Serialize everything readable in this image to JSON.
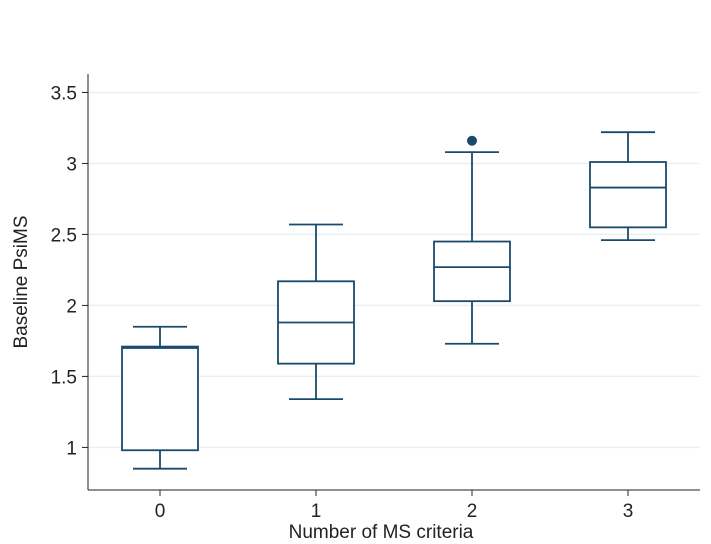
{
  "chart_data": {
    "type": "box",
    "title": "",
    "xlabel": "Number of MS criteria",
    "ylabel": "Baseline PsiMS",
    "categories": [
      "0",
      "1",
      "2",
      "3"
    ],
    "ylim": [
      0.7,
      3.63
    ],
    "yticks": [
      1,
      1.5,
      2,
      2.5,
      3,
      3.5
    ],
    "ytick_labels": [
      "1",
      "1.5",
      "2",
      "2.5",
      "3",
      "3.5"
    ],
    "grid": "horizontal",
    "legend": "none",
    "box_color": "#1a4a6b",
    "grid_color": "#e8f0f2",
    "boxes": [
      {
        "category": "0",
        "whisker_low": 0.85,
        "q1": 0.98,
        "median": 1.7,
        "q3": 1.71,
        "whisker_high": 1.85,
        "outliers": []
      },
      {
        "category": "1",
        "whisker_low": 1.34,
        "q1": 1.59,
        "median": 1.88,
        "q3": 2.17,
        "whisker_high": 2.57,
        "outliers": []
      },
      {
        "category": "2",
        "whisker_low": 1.73,
        "q1": 2.03,
        "median": 2.27,
        "q3": 2.45,
        "whisker_high": 3.08,
        "outliers": [
          3.16
        ]
      },
      {
        "category": "3",
        "whisker_low": 2.46,
        "q1": 2.55,
        "median": 2.83,
        "q3": 3.01,
        "whisker_high": 3.22,
        "outliers": []
      }
    ]
  }
}
